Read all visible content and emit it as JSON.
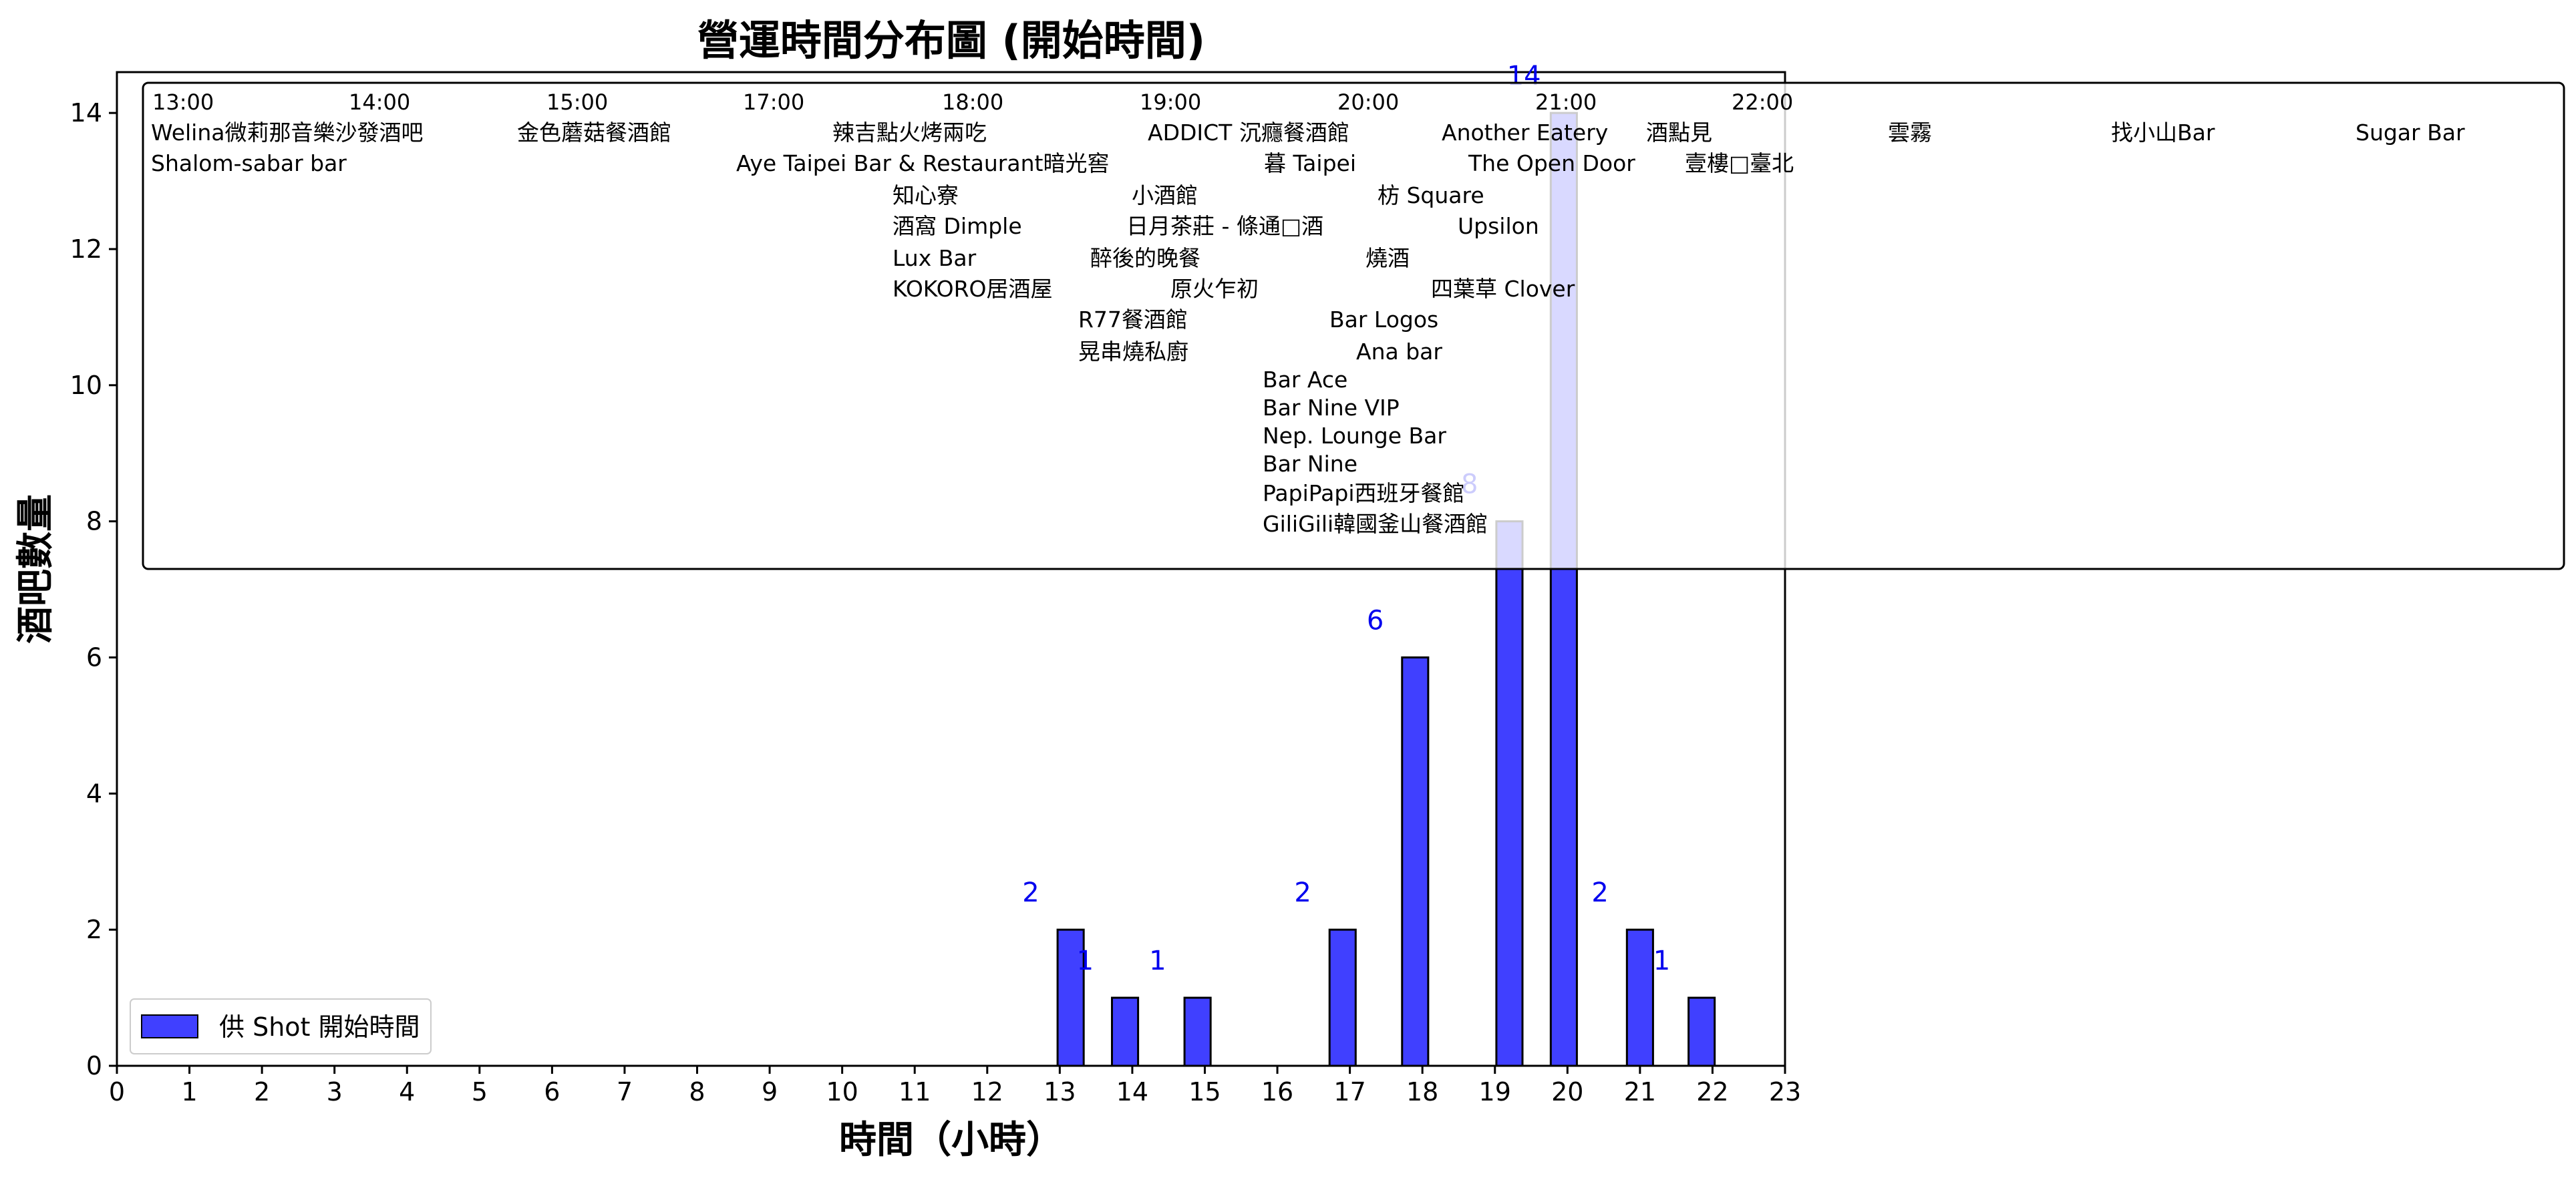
{
  "chart_data": {
    "type": "bar",
    "title": "營運時間分布圖 (開始時間)",
    "xlabel": "時間（小時）",
    "ylabel": "酒吧數量",
    "xlim": [
      0,
      23
    ],
    "ylim": [
      0,
      14.6
    ],
    "x_ticks": [
      "0",
      "1",
      "2",
      "3",
      "4",
      "5",
      "6",
      "7",
      "8",
      "9",
      "10",
      "11",
      "12",
      "13",
      "14",
      "15",
      "16",
      "17",
      "18",
      "19",
      "20",
      "21",
      "22",
      "23"
    ],
    "y_ticks": [
      "0",
      "2",
      "4",
      "6",
      "8",
      "10",
      "12",
      "14"
    ],
    "grid": false,
    "legend_placement": "lower-left",
    "series": [
      {
        "name": "供 Shot 開始時間",
        "color": "#4040ff",
        "x": [
          13.15,
          13.9,
          14.9,
          16.9,
          17.9,
          19.2,
          19.95,
          21,
          21.85
        ],
        "values": [
          2,
          1,
          1,
          2,
          6,
          8,
          14,
          2,
          1
        ],
        "labels": [
          "2",
          "1",
          "1",
          "2",
          "6",
          "8",
          "14",
          "2",
          "1"
        ]
      }
    ],
    "annotation_box": {
      "times": [
        "13:00",
        "14:00",
        "15:00",
        "17:00",
        "18:00",
        "19:00",
        "20:00",
        "21:00",
        "22:00"
      ],
      "names": [
        "Welina微莉那音樂沙發酒吧",
        "金色蘑菇餐酒館",
        "辣吉點火烤兩吃",
        "ADDICT 沉癮餐酒館",
        "Another Eatery",
        "酒點見",
        "雲霧",
        "找小山Bar",
        "Sugar Bar",
        "Shalom-sabar bar",
        "Aye Taipei Bar & Restaurant暗光窖",
        "暮 Taipei",
        "The Open Door",
        "壹樓□臺北",
        "知心寮",
        "小酒館",
        "枋 Square",
        "酒窩 Dimple",
        "日月茶莊 - 條通□酒",
        "Upsilon",
        "Lux Bar",
        "醉後的晚餐",
        "燒酒",
        "KOKORO居酒屋",
        "原火乍初",
        "四葉草 Clover",
        "R77餐酒館",
        "Bar Logos",
        "晃串燒私廚",
        "Ana bar",
        "Bar Ace",
        "Bar Nine VIP",
        "Nep. Lounge Bar",
        "Bar Nine",
        "PapiPapi西班牙餐館",
        "GiliGili韓國釜山餐酒館"
      ]
    }
  }
}
